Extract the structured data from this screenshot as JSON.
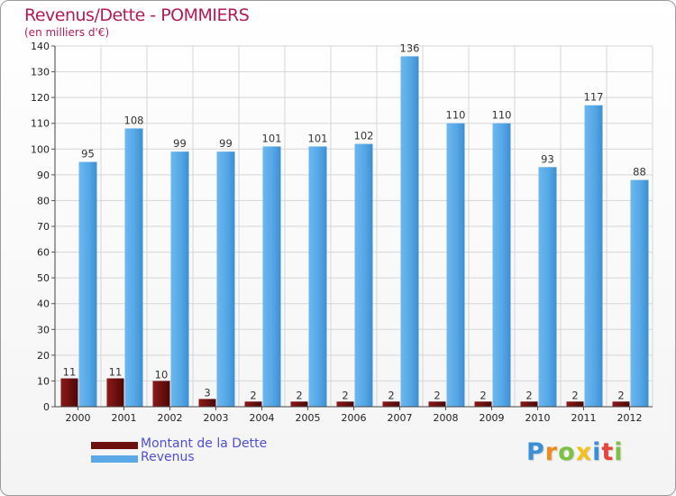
{
  "chart_data": {
    "type": "bar",
    "title": "Revenus/Dette - POMMIERS",
    "subtitle": "(en milliers d'€)",
    "categories": [
      "2000",
      "2001",
      "2002",
      "2003",
      "2004",
      "2005",
      "2006",
      "2007",
      "2008",
      "2009",
      "2010",
      "2011",
      "2012"
    ],
    "ylim": [
      0,
      140
    ],
    "yticks": [
      0,
      10,
      20,
      30,
      40,
      50,
      60,
      70,
      80,
      90,
      100,
      110,
      120,
      130,
      140
    ],
    "grid": true,
    "legend_position": "bottom-left",
    "series": [
      {
        "name": "Montant de la Dette",
        "color": "#6b0f0f",
        "values": [
          11,
          11,
          10,
          3,
          2,
          2,
          2,
          2,
          2,
          2,
          2,
          2,
          2
        ]
      },
      {
        "name": "Revenus",
        "color": "#5aa9e6",
        "values": [
          95,
          108,
          99,
          99,
          101,
          101,
          102,
          136,
          110,
          110,
          93,
          117,
          88
        ]
      }
    ]
  },
  "brand": {
    "letters": [
      {
        "ch": "P",
        "color": "#3a8fd6"
      },
      {
        "ch": "r",
        "color": "#f08a1c"
      },
      {
        "ch": "o",
        "color": "#7cc242"
      },
      {
        "ch": "x",
        "color": "#f3c21a"
      },
      {
        "ch": "i",
        "color": "#3a8fd6"
      },
      {
        "ch": "t",
        "color": "#e8443a"
      },
      {
        "ch": "i",
        "color": "#7cc242"
      }
    ]
  }
}
